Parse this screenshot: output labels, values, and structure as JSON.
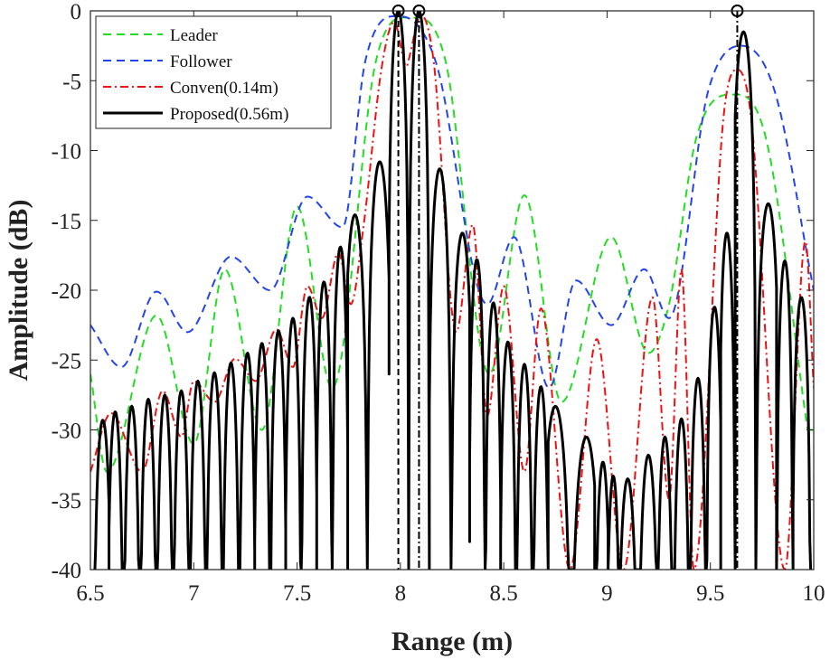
{
  "chart_data": {
    "type": "line",
    "title": "",
    "xlabel": "Range (m)",
    "ylabel": "Amplitude (dB)",
    "xlim": [
      6.5,
      10
    ],
    "ylim": [
      -40,
      0
    ],
    "xticks": [
      6.5,
      7,
      7.5,
      8,
      8.5,
      9,
      9.5,
      10
    ],
    "xtick_labels": [
      "6.5",
      "7",
      "7.5",
      "8",
      "8.5",
      "9",
      "9.5",
      "10"
    ],
    "yticks": [
      0,
      -5,
      -10,
      -15,
      -20,
      -25,
      -30,
      -35,
      -40
    ],
    "ytick_labels": [
      "0",
      "-5",
      "-10",
      "-15",
      "-20",
      "-25",
      "-30",
      "-35",
      "-40"
    ],
    "grid": false,
    "legend_position": "top-left",
    "series": [
      {
        "name": "Leader",
        "color": "#22dd22",
        "style": "dashed",
        "peaks": [
          {
            "x": 8.05,
            "y": -0.5,
            "halfwidth": 0.34
          },
          {
            "x": 9.6,
            "y": -6,
            "halfwidth": 0.34
          }
        ],
        "sidelobes": [
          {
            "x": 6.5,
            "y": -26
          },
          {
            "x": 6.82,
            "y": -21.8
          },
          {
            "x": 7.15,
            "y": -18.5
          },
          {
            "x": 7.5,
            "y": -14
          },
          {
            "x": 8.6,
            "y": -13.2
          },
          {
            "x": 9.02,
            "y": -16.2
          },
          {
            "x": 9.3,
            "y": -21
          }
        ],
        "nulls": [
          {
            "x": 6.58,
            "y": -33
          },
          {
            "x": 7.0,
            "y": -31
          },
          {
            "x": 7.33,
            "y": -30
          },
          {
            "x": 7.67,
            "y": -27
          },
          {
            "x": 8.43,
            "y": -26
          },
          {
            "x": 8.78,
            "y": -28
          },
          {
            "x": 9.2,
            "y": -24.5
          },
          {
            "x": 9.97,
            "y": -30
          }
        ]
      },
      {
        "name": "Follower",
        "color": "#2244ee",
        "style": "dashed",
        "peaks": [
          {
            "x": 8.0,
            "y": -0.4,
            "halfwidth": 0.34
          },
          {
            "x": 9.65,
            "y": -2.5,
            "halfwidth": 0.32
          }
        ],
        "sidelobes": [
          {
            "x": 6.5,
            "y": -22.5
          },
          {
            "x": 6.82,
            "y": -20.1
          },
          {
            "x": 7.18,
            "y": -17.6
          },
          {
            "x": 7.55,
            "y": -13.3
          },
          {
            "x": 8.55,
            "y": -16.2
          },
          {
            "x": 8.85,
            "y": -19.3
          },
          {
            "x": 9.18,
            "y": -18.5
          }
        ],
        "nulls": [
          {
            "x": 6.65,
            "y": -25.5
          },
          {
            "x": 6.97,
            "y": -23
          },
          {
            "x": 7.37,
            "y": -20
          },
          {
            "x": 7.72,
            "y": -15.5
          },
          {
            "x": 8.42,
            "y": -21
          },
          {
            "x": 8.72,
            "y": -27
          },
          {
            "x": 9.02,
            "y": -22.5
          },
          {
            "x": 9.3,
            "y": -22
          },
          {
            "x": 10.0,
            "y": -20
          }
        ]
      },
      {
        "name": "Conven(0.14m)",
        "color": "#ee1111",
        "style": "dash-dot",
        "peaks": [
          {
            "x": 7.97,
            "y": -0.8,
            "halfwidth": 0.12
          },
          {
            "x": 8.1,
            "y": -0.3,
            "halfwidth": 0.12
          },
          {
            "x": 9.63,
            "y": -4.2,
            "halfwidth": 0.13
          }
        ],
        "sidelobes": [
          {
            "x": 6.6,
            "y": -28.8
          },
          {
            "x": 6.85,
            "y": -27.2
          },
          {
            "x": 7.0,
            "y": -26.5
          },
          {
            "x": 7.2,
            "y": -24.9
          },
          {
            "x": 7.4,
            "y": -22.8
          },
          {
            "x": 7.55,
            "y": -19.7
          },
          {
            "x": 7.7,
            "y": -17.3
          },
          {
            "x": 7.82,
            "y": -15.6
          },
          {
            "x": 8.35,
            "y": -15.3
          },
          {
            "x": 8.5,
            "y": -19.7
          },
          {
            "x": 8.68,
            "y": -21.3
          },
          {
            "x": 8.95,
            "y": -23.5
          },
          {
            "x": 9.22,
            "y": -20.5
          },
          {
            "x": 9.36,
            "y": -18.5
          },
          {
            "x": 9.96,
            "y": -16.5
          }
        ],
        "nulls": [
          {
            "x": 6.5,
            "y": -33
          },
          {
            "x": 6.75,
            "y": -33
          },
          {
            "x": 6.94,
            "y": -30.5
          },
          {
            "x": 7.1,
            "y": -28
          },
          {
            "x": 7.3,
            "y": -26.5
          },
          {
            "x": 7.48,
            "y": -25.5
          },
          {
            "x": 7.62,
            "y": -22
          },
          {
            "x": 7.76,
            "y": -21
          },
          {
            "x": 8.27,
            "y": -23
          },
          {
            "x": 8.42,
            "y": -29
          },
          {
            "x": 8.6,
            "y": -33
          },
          {
            "x": 8.82,
            "y": -40
          },
          {
            "x": 9.08,
            "y": -40
          },
          {
            "x": 9.3,
            "y": -35
          },
          {
            "x": 9.42,
            "y": -40
          },
          {
            "x": 9.86,
            "y": -40
          },
          {
            "x": 10.0,
            "y": -27
          }
        ]
      },
      {
        "name": "Proposed(0.56m)",
        "color": "#000000",
        "style": "solid",
        "peaks": [
          {
            "x": 7.99,
            "y": 0
          },
          {
            "x": 8.09,
            "y": 0
          },
          {
            "x": 9.66,
            "y": -1.5
          }
        ],
        "sidelobe_peaks": [
          {
            "x": 6.56,
            "y": -29.3
          },
          {
            "x": 6.62,
            "y": -28.7
          },
          {
            "x": 6.7,
            "y": -28.3
          },
          {
            "x": 6.78,
            "y": -27.8
          },
          {
            "x": 6.86,
            "y": -27.5
          },
          {
            "x": 6.94,
            "y": -27.2
          },
          {
            "x": 7.02,
            "y": -26.5
          },
          {
            "x": 7.1,
            "y": -25.9
          },
          {
            "x": 7.18,
            "y": -25.2
          },
          {
            "x": 7.26,
            "y": -24.5
          },
          {
            "x": 7.33,
            "y": -23.8
          },
          {
            "x": 7.41,
            "y": -22.9
          },
          {
            "x": 7.48,
            "y": -22.0
          },
          {
            "x": 7.56,
            "y": -20.5
          },
          {
            "x": 7.63,
            "y": -19.4
          },
          {
            "x": 7.71,
            "y": -16.9
          },
          {
            "x": 7.78,
            "y": -14.6
          },
          {
            "x": 7.9,
            "y": -10.8
          },
          {
            "x": 8.19,
            "y": -11.3
          },
          {
            "x": 8.3,
            "y": -15.9
          },
          {
            "x": 8.37,
            "y": -17.8
          },
          {
            "x": 8.45,
            "y": -20.9
          },
          {
            "x": 8.52,
            "y": -23.7
          },
          {
            "x": 8.6,
            "y": -25.3
          },
          {
            "x": 8.68,
            "y": -26.9
          },
          {
            "x": 8.75,
            "y": -28.3
          },
          {
            "x": 8.9,
            "y": -30.5
          },
          {
            "x": 8.98,
            "y": -32.3
          },
          {
            "x": 9.03,
            "y": -33.3
          },
          {
            "x": 9.1,
            "y": -33.5
          },
          {
            "x": 9.2,
            "y": -31.8
          },
          {
            "x": 9.28,
            "y": -30.5
          },
          {
            "x": 9.36,
            "y": -29.2
          },
          {
            "x": 9.44,
            "y": -26.3
          },
          {
            "x": 9.52,
            "y": -21.2
          },
          {
            "x": 9.58,
            "y": -15.9
          },
          {
            "x": 9.78,
            "y": -13.8
          },
          {
            "x": 9.86,
            "y": -17.9
          },
          {
            "x": 9.94,
            "y": -20.5
          }
        ],
        "deep_nulls": [
          {
            "x": 7.83,
            "y": -35
          },
          {
            "x": 7.95,
            "y": -26
          },
          {
            "x": 8.04,
            "y": -23
          },
          {
            "x": 8.14,
            "y": -25
          },
          {
            "x": 8.24,
            "y": -33
          },
          {
            "x": 8.33,
            "y": -38
          },
          {
            "x": 8.56,
            "y": -38
          },
          {
            "x": 9.73,
            "y": -38
          }
        ]
      }
    ],
    "annotations": {
      "target_markers": [
        {
          "x": 7.99,
          "y": 0,
          "line": "dashed"
        },
        {
          "x": 8.09,
          "y": 0,
          "line": "dash-dot"
        },
        {
          "x": 9.63,
          "y": 0,
          "line": "dash-dot"
        }
      ]
    }
  }
}
